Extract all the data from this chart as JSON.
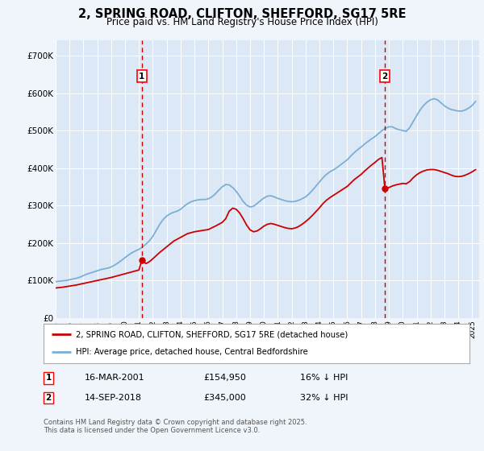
{
  "title": "2, SPRING ROAD, CLIFTON, SHEFFORD, SG17 5RE",
  "subtitle": "Price paid vs. HM Land Registry's House Price Index (HPI)",
  "title_fontsize": 10.5,
  "subtitle_fontsize": 8.5,
  "background_color": "#f0f4fb",
  "plot_bg_color": "#dce8f5",
  "ylabel_ticks": [
    "£0",
    "£100K",
    "£200K",
    "£300K",
    "£400K",
    "£500K",
    "£600K",
    "£700K"
  ],
  "ytick_values": [
    0,
    100000,
    200000,
    300000,
    400000,
    500000,
    600000,
    700000
  ],
  "ylim": [
    0,
    740000
  ],
  "xlim_start": 1995.0,
  "xlim_end": 2025.5,
  "red_line_color": "#cc0000",
  "blue_line_color": "#7ab0d4",
  "marker1_year": 2001.21,
  "marker2_year": 2018.71,
  "sale1_date": "16-MAR-2001",
  "sale1_price": "£154,950",
  "sale1_note": "16% ↓ HPI",
  "sale2_date": "14-SEP-2018",
  "sale2_price": "£345,000",
  "sale2_note": "32% ↓ HPI",
  "legend_label_red": "2, SPRING ROAD, CLIFTON, SHEFFORD, SG17 5RE (detached house)",
  "legend_label_blue": "HPI: Average price, detached house, Central Bedfordshire",
  "footnote": "Contains HM Land Registry data © Crown copyright and database right 2025.\nThis data is licensed under the Open Government Licence v3.0.",
  "hpi_data": [
    [
      1995.0,
      97000
    ],
    [
      1995.25,
      98000
    ],
    [
      1995.5,
      99000
    ],
    [
      1995.75,
      100000
    ],
    [
      1996.0,
      102000
    ],
    [
      1996.25,
      104000
    ],
    [
      1996.5,
      106000
    ],
    [
      1996.75,
      109000
    ],
    [
      1997.0,
      113000
    ],
    [
      1997.25,
      117000
    ],
    [
      1997.5,
      120000
    ],
    [
      1997.75,
      123000
    ],
    [
      1998.0,
      126000
    ],
    [
      1998.25,
      129000
    ],
    [
      1998.5,
      131000
    ],
    [
      1998.75,
      133000
    ],
    [
      1999.0,
      136000
    ],
    [
      1999.25,
      141000
    ],
    [
      1999.5,
      147000
    ],
    [
      1999.75,
      154000
    ],
    [
      2000.0,
      161000
    ],
    [
      2000.25,
      168000
    ],
    [
      2000.5,
      174000
    ],
    [
      2000.75,
      179000
    ],
    [
      2001.0,
      183000
    ],
    [
      2001.25,
      189000
    ],
    [
      2001.5,
      197000
    ],
    [
      2001.75,
      206000
    ],
    [
      2002.0,
      218000
    ],
    [
      2002.25,
      234000
    ],
    [
      2002.5,
      250000
    ],
    [
      2002.75,
      263000
    ],
    [
      2003.0,
      272000
    ],
    [
      2003.25,
      278000
    ],
    [
      2003.5,
      282000
    ],
    [
      2003.75,
      285000
    ],
    [
      2004.0,
      290000
    ],
    [
      2004.25,
      298000
    ],
    [
      2004.5,
      305000
    ],
    [
      2004.75,
      310000
    ],
    [
      2005.0,
      313000
    ],
    [
      2005.25,
      315000
    ],
    [
      2005.5,
      316000
    ],
    [
      2005.75,
      316000
    ],
    [
      2006.0,
      318000
    ],
    [
      2006.25,
      323000
    ],
    [
      2006.5,
      331000
    ],
    [
      2006.75,
      341000
    ],
    [
      2007.0,
      350000
    ],
    [
      2007.25,
      356000
    ],
    [
      2007.5,
      355000
    ],
    [
      2007.75,
      348000
    ],
    [
      2008.0,
      338000
    ],
    [
      2008.25,
      325000
    ],
    [
      2008.5,
      311000
    ],
    [
      2008.75,
      301000
    ],
    [
      2009.0,
      296000
    ],
    [
      2009.25,
      298000
    ],
    [
      2009.5,
      305000
    ],
    [
      2009.75,
      313000
    ],
    [
      2010.0,
      320000
    ],
    [
      2010.25,
      325000
    ],
    [
      2010.5,
      326000
    ],
    [
      2010.75,
      323000
    ],
    [
      2011.0,
      319000
    ],
    [
      2011.25,
      316000
    ],
    [
      2011.5,
      313000
    ],
    [
      2011.75,
      311000
    ],
    [
      2012.0,
      310000
    ],
    [
      2012.25,
      311000
    ],
    [
      2012.5,
      314000
    ],
    [
      2012.75,
      318000
    ],
    [
      2013.0,
      323000
    ],
    [
      2013.25,
      331000
    ],
    [
      2013.5,
      341000
    ],
    [
      2013.75,
      352000
    ],
    [
      2014.0,
      363000
    ],
    [
      2014.25,
      374000
    ],
    [
      2014.5,
      383000
    ],
    [
      2014.75,
      390000
    ],
    [
      2015.0,
      395000
    ],
    [
      2015.25,
      401000
    ],
    [
      2015.5,
      408000
    ],
    [
      2015.75,
      415000
    ],
    [
      2016.0,
      422000
    ],
    [
      2016.25,
      432000
    ],
    [
      2016.5,
      441000
    ],
    [
      2016.75,
      449000
    ],
    [
      2017.0,
      456000
    ],
    [
      2017.25,
      464000
    ],
    [
      2017.5,
      471000
    ],
    [
      2017.75,
      478000
    ],
    [
      2018.0,
      484000
    ],
    [
      2018.25,
      492000
    ],
    [
      2018.5,
      500000
    ],
    [
      2018.75,
      506000
    ],
    [
      2019.0,
      510000
    ],
    [
      2019.25,
      510000
    ],
    [
      2019.5,
      505000
    ],
    [
      2019.75,
      502000
    ],
    [
      2020.0,
      500000
    ],
    [
      2020.25,
      498000
    ],
    [
      2020.5,
      508000
    ],
    [
      2020.75,
      524000
    ],
    [
      2021.0,
      540000
    ],
    [
      2021.25,
      555000
    ],
    [
      2021.5,
      567000
    ],
    [
      2021.75,
      576000
    ],
    [
      2022.0,
      582000
    ],
    [
      2022.25,
      585000
    ],
    [
      2022.5,
      582000
    ],
    [
      2022.75,
      574000
    ],
    [
      2023.0,
      566000
    ],
    [
      2023.25,
      560000
    ],
    [
      2023.5,
      556000
    ],
    [
      2023.75,
      554000
    ],
    [
      2024.0,
      552000
    ],
    [
      2024.25,
      552000
    ],
    [
      2024.5,
      555000
    ],
    [
      2024.75,
      560000
    ],
    [
      2025.0,
      567000
    ],
    [
      2025.25,
      578000
    ]
  ],
  "price_data": [
    [
      1995.0,
      80000
    ],
    [
      1995.5,
      82000
    ],
    [
      1996.0,
      85000
    ],
    [
      1996.5,
      88000
    ],
    [
      1997.0,
      92000
    ],
    [
      1997.5,
      96000
    ],
    [
      1998.0,
      100000
    ],
    [
      1998.5,
      104000
    ],
    [
      1999.0,
      108000
    ],
    [
      1999.5,
      113000
    ],
    [
      2000.0,
      118000
    ],
    [
      2000.5,
      123000
    ],
    [
      2001.0,
      128000
    ],
    [
      2001.21,
      154950
    ],
    [
      2001.5,
      145000
    ],
    [
      2001.75,
      150000
    ],
    [
      2002.0,
      158000
    ],
    [
      2002.5,
      175000
    ],
    [
      2003.0,
      190000
    ],
    [
      2003.5,
      205000
    ],
    [
      2004.0,
      215000
    ],
    [
      2004.5,
      225000
    ],
    [
      2005.0,
      230000
    ],
    [
      2005.5,
      233000
    ],
    [
      2006.0,
      236000
    ],
    [
      2006.5,
      245000
    ],
    [
      2007.0,
      255000
    ],
    [
      2007.25,
      265000
    ],
    [
      2007.5,
      285000
    ],
    [
      2007.75,
      293000
    ],
    [
      2008.0,
      290000
    ],
    [
      2008.25,
      280000
    ],
    [
      2008.5,
      265000
    ],
    [
      2008.75,
      248000
    ],
    [
      2009.0,
      235000
    ],
    [
      2009.25,
      230000
    ],
    [
      2009.5,
      232000
    ],
    [
      2009.75,
      238000
    ],
    [
      2010.0,
      245000
    ],
    [
      2010.25,
      250000
    ],
    [
      2010.5,
      252000
    ],
    [
      2010.75,
      250000
    ],
    [
      2011.0,
      247000
    ],
    [
      2011.25,
      244000
    ],
    [
      2011.5,
      241000
    ],
    [
      2011.75,
      239000
    ],
    [
      2012.0,
      238000
    ],
    [
      2012.25,
      240000
    ],
    [
      2012.5,
      244000
    ],
    [
      2012.75,
      250000
    ],
    [
      2013.0,
      257000
    ],
    [
      2013.25,
      265000
    ],
    [
      2013.5,
      274000
    ],
    [
      2013.75,
      284000
    ],
    [
      2014.0,
      294000
    ],
    [
      2014.25,
      305000
    ],
    [
      2014.5,
      314000
    ],
    [
      2014.75,
      321000
    ],
    [
      2015.0,
      327000
    ],
    [
      2015.25,
      333000
    ],
    [
      2015.5,
      339000
    ],
    [
      2015.75,
      345000
    ],
    [
      2016.0,
      351000
    ],
    [
      2016.25,
      360000
    ],
    [
      2016.5,
      369000
    ],
    [
      2016.75,
      376000
    ],
    [
      2017.0,
      383000
    ],
    [
      2017.25,
      392000
    ],
    [
      2017.5,
      400000
    ],
    [
      2017.75,
      408000
    ],
    [
      2018.0,
      415000
    ],
    [
      2018.25,
      423000
    ],
    [
      2018.5,
      428000
    ],
    [
      2018.71,
      345000
    ],
    [
      2018.75,
      345000
    ],
    [
      2019.0,
      348000
    ],
    [
      2019.25,
      352000
    ],
    [
      2019.5,
      355000
    ],
    [
      2019.75,
      357000
    ],
    [
      2020.0,
      359000
    ],
    [
      2020.25,
      358000
    ],
    [
      2020.5,
      364000
    ],
    [
      2020.75,
      374000
    ],
    [
      2021.0,
      382000
    ],
    [
      2021.25,
      388000
    ],
    [
      2021.5,
      392000
    ],
    [
      2021.75,
      395000
    ],
    [
      2022.0,
      396000
    ],
    [
      2022.25,
      396000
    ],
    [
      2022.5,
      394000
    ],
    [
      2022.75,
      391000
    ],
    [
      2023.0,
      388000
    ],
    [
      2023.25,
      385000
    ],
    [
      2023.5,
      381000
    ],
    [
      2023.75,
      378000
    ],
    [
      2024.0,
      377000
    ],
    [
      2024.25,
      378000
    ],
    [
      2024.5,
      381000
    ],
    [
      2024.75,
      385000
    ],
    [
      2025.0,
      390000
    ],
    [
      2025.25,
      396000
    ]
  ],
  "sale1_y": 154950,
  "sale2_y": 345000
}
